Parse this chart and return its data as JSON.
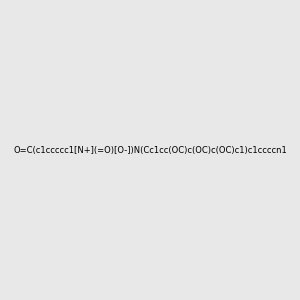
{
  "smiles": "O=C(c1ccccc1[N+](=O)[O-])N(Cc1cc(OC)c(OC)c(OC)c1)c1ccccn1",
  "image_size": 300,
  "background_color": "#e8e8e8",
  "title": ""
}
